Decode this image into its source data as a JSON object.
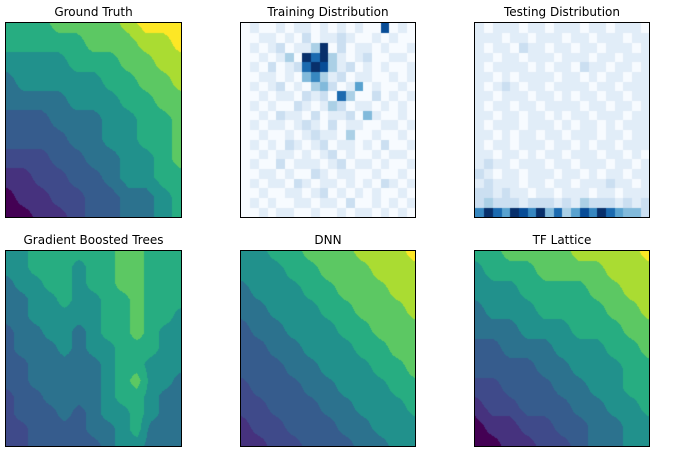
{
  "figure": {
    "background": "#ffffff",
    "border_color": "#000000",
    "title_color": "#000000"
  },
  "chart_data": {
    "type": "heatmap",
    "layout": {
      "rows": 2,
      "cols": 3,
      "grid_off": true,
      "axis_ticks": "none"
    },
    "value_scale": [
      0,
      9
    ],
    "colormaps": {
      "viridis": [
        "#440154",
        "#46327e",
        "#3f4a8a",
        "#365c8d",
        "#2c728e",
        "#21918c",
        "#27ad81",
        "#5cc863",
        "#aadc32",
        "#fde725"
      ],
      "blues": [
        "#f7fbff",
        "#deebf7",
        "#c6dbef",
        "#9ecae1",
        "#6baed6",
        "#4292c6",
        "#2171b5",
        "#08519c",
        "#08306b"
      ]
    },
    "panels": [
      {
        "id": "ground-truth",
        "title": "Ground Truth",
        "plot_type": "filled-contour",
        "colormap": "viridis",
        "render": "smooth",
        "grid": [
          "66677778999",
          "66666777889",
          "55556667788",
          "45555566778",
          "44445556677",
          "33344455667",
          "33334455667",
          "22233445567",
          "11223345566",
          "01122334456",
          "00112334456"
        ]
      },
      {
        "id": "training-distribution",
        "title": "Training Distribution",
        "plot_type": "histogram2d",
        "colormap": "blues",
        "render": "cells",
        "grid": [
          "01001011010101008010",
          "00110102011210010100",
          "01012011390201101001",
          "00101309793101200110",
          "01020127983120101001",
          "00110104631201100101",
          "01012010342015010010",
          "00101102120730020101",
          "01010021013201101010",
          "00102110201120410010",
          "01011012102011001101",
          "00100101211030010010",
          "01010210120110102001",
          "00101101012010010110",
          "01002011101201101001",
          "00110100210110010010",
          "01011021011010102101",
          "00100110120101010010",
          "01010011011020010101",
          "00101100100101101010"
        ]
      },
      {
        "id": "testing-distribution",
        "title": "Testing Distribution",
        "plot_type": "histogram2d",
        "colormap": "blues",
        "render": "cells",
        "grid": [
          "10111011011101101110",
          "11101101110110111011",
          "10110211011011011101",
          "11011011101110110111",
          "10111101011021101101",
          "11010111101101011011",
          "10121011011110110111",
          "11011101101011011011",
          "10110110111101101101",
          "11011011010110111011",
          "10111011101011010111",
          "11010110110111011011",
          "10110111011010110111",
          "11011010110111011010",
          "12110111011011101101",
          "21011011101101011011",
          "12111011011011121101",
          "22121101101110110111",
          "23222122212132221212",
          "69759869473586975442"
        ]
      },
      {
        "id": "gradient-boosted-trees",
        "title": "Gradient Boosted Trees",
        "plot_type": "filled-contour",
        "colormap": "viridis",
        "render": "smooth",
        "grid": [
          "5566666677666",
          "5566656677666",
          "4556656677666",
          "4455655667666",
          "4455555667665",
          "3445545667655",
          "3444545566655",
          "3344444566555",
          "3344444567554",
          "2334444566544",
          "2333434556544",
          "2233334456444",
          "2233333455444"
        ]
      },
      {
        "id": "dnn",
        "title": "DNN",
        "plot_type": "filled-contour",
        "colormap": "viridis",
        "render": "smooth",
        "grid": [
          "55667778889",
          "55566777888",
          "45556677788",
          "44555667778",
          "34455566777",
          "33445556677",
          "33344555667",
          "23334455566",
          "22333445556",
          "12233344555",
          "11223334455"
        ]
      },
      {
        "id": "tf-lattice",
        "title": "TF Lattice",
        "plot_type": "filled-contour",
        "colormap": "viridis",
        "render": "smooth",
        "grid": [
          "66777788889",
          "56667777888",
          "55566667788",
          "45556666778",
          "44455566677",
          "33444555667",
          "33334455566",
          "22333445566",
          "12233344556",
          "01122334455",
          "00112234455"
        ]
      }
    ]
  }
}
